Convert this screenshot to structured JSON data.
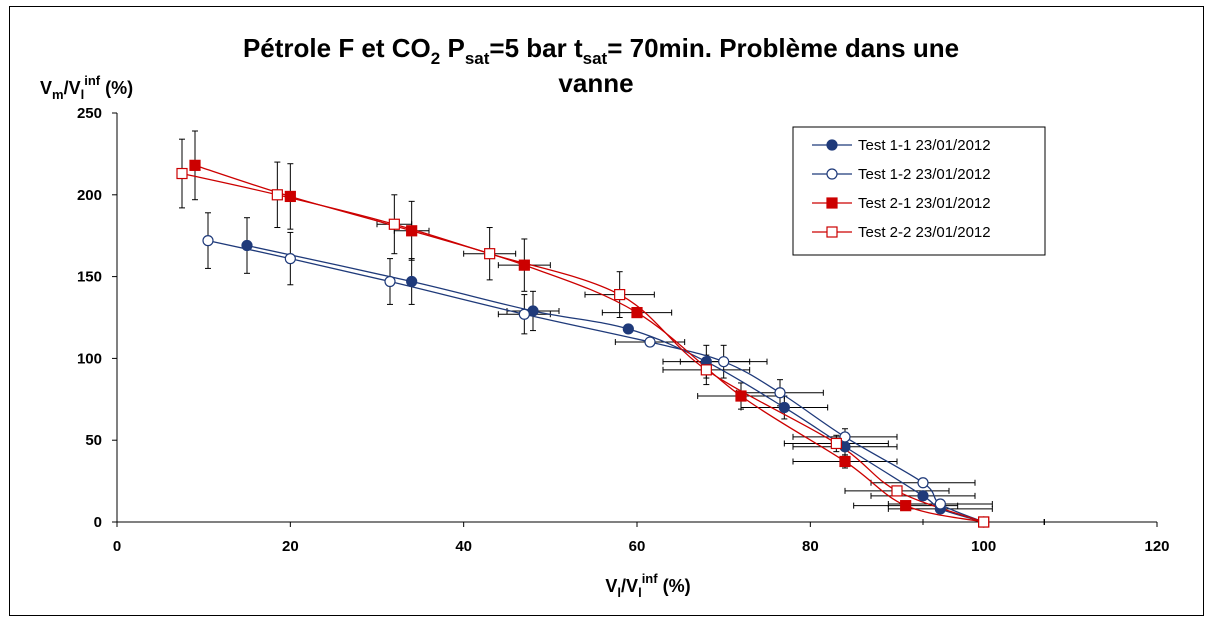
{
  "chart_data": {
    "type": "scatter",
    "title": {
      "line1": {
        "a": "Pétrole F et CO",
        "a_sub": "2",
        "b": " P",
        "b_sub": "sat",
        "c": "=5 bar t",
        "c_sub": "sat",
        "d": "= 70min. Problème dans une"
      },
      "line2": "vanne"
    },
    "xlabel": {
      "a": "V",
      "a_sub": "l",
      "b": "/V",
      "b_sub": "l",
      "b_sup": "inf",
      "c": " (%)"
    },
    "ylabel": {
      "a": "V",
      "a_sub": "m",
      "b": "/V",
      "b_sub": "l",
      "b_sup": "inf",
      "c": " (%)"
    },
    "xlim": [
      0,
      120
    ],
    "ylim": [
      0,
      250
    ],
    "x_ticks": [
      "0",
      "20",
      "40",
      "60",
      "80",
      "100",
      "120"
    ],
    "y_ticks": [
      "0",
      "50",
      "100",
      "150",
      "200",
      "250"
    ],
    "grid": false,
    "legend_position": "top-right",
    "series": [
      {
        "name": "Test 1-1 23/01/2012",
        "color": "#1f3a7a",
        "marker": "circle",
        "filled": true,
        "points": [
          {
            "x": 15,
            "y": 169,
            "xerr": 0,
            "yerr": 17
          },
          {
            "x": 34,
            "y": 147,
            "xerr": 0,
            "yerr": 14
          },
          {
            "x": 48,
            "y": 129,
            "xerr": 3,
            "yerr": 12
          },
          {
            "x": 59,
            "y": 118,
            "xerr": 0,
            "yerr": 0
          },
          {
            "x": 68,
            "y": 98,
            "xerr": 5,
            "yerr": 10
          },
          {
            "x": 77,
            "y": 70,
            "xerr": 5,
            "yerr": 7
          },
          {
            "x": 84,
            "y": 46,
            "xerr": 6,
            "yerr": 5
          },
          {
            "x": 93,
            "y": 16,
            "xerr": 6,
            "yerr": 2
          },
          {
            "x": 95,
            "y": 8,
            "xerr": 6,
            "yerr": 1
          },
          {
            "x": 100,
            "y": 0,
            "xerr": 7,
            "yerr": 0
          }
        ]
      },
      {
        "name": "Test 1-2 23/01/2012",
        "color": "#1f3a7a",
        "marker": "circle",
        "filled": false,
        "points": [
          {
            "x": 10.5,
            "y": 172,
            "xerr": 0,
            "yerr": 17
          },
          {
            "x": 20,
            "y": 161,
            "xerr": 0,
            "yerr": 16
          },
          {
            "x": 31.5,
            "y": 147,
            "xerr": 0,
            "yerr": 14
          },
          {
            "x": 47,
            "y": 127,
            "xerr": 3,
            "yerr": 12
          },
          {
            "x": 61.5,
            "y": 110,
            "xerr": 4,
            "yerr": 0
          },
          {
            "x": 70,
            "y": 98,
            "xerr": 5,
            "yerr": 10
          },
          {
            "x": 76.5,
            "y": 79,
            "xerr": 5,
            "yerr": 8
          },
          {
            "x": 84,
            "y": 52,
            "xerr": 6,
            "yerr": 5
          },
          {
            "x": 93,
            "y": 24,
            "xerr": 6,
            "yerr": 2
          },
          {
            "x": 95,
            "y": 11,
            "xerr": 6,
            "yerr": 1
          },
          {
            "x": 100,
            "y": 0,
            "xerr": 7,
            "yerr": 0
          }
        ]
      },
      {
        "name": "Test 2-1 23/01/2012",
        "color": "#cc0000",
        "marker": "square",
        "filled": true,
        "points": [
          {
            "x": 9,
            "y": 218,
            "xerr": 0,
            "yerr": 21
          },
          {
            "x": 20,
            "y": 199,
            "xerr": 0,
            "yerr": 20
          },
          {
            "x": 34,
            "y": 178,
            "xerr": 2,
            "yerr": 18
          },
          {
            "x": 47,
            "y": 157,
            "xerr": 3,
            "yerr": 16
          },
          {
            "x": 60,
            "y": 128,
            "xerr": 4,
            "yerr": 0
          },
          {
            "x": 72,
            "y": 77,
            "xerr": 5,
            "yerr": 8
          },
          {
            "x": 84,
            "y": 37,
            "xerr": 6,
            "yerr": 4
          },
          {
            "x": 91,
            "y": 10,
            "xerr": 6,
            "yerr": 1
          },
          {
            "x": 100,
            "y": 0,
            "xerr": 7,
            "yerr": 0
          }
        ]
      },
      {
        "name": "Test 2-2 23/01/2012",
        "color": "#cc0000",
        "marker": "square",
        "filled": false,
        "points": [
          {
            "x": 7.5,
            "y": 213,
            "xerr": 0,
            "yerr": 21
          },
          {
            "x": 18.5,
            "y": 200,
            "xerr": 0,
            "yerr": 20
          },
          {
            "x": 32,
            "y": 182,
            "xerr": 2,
            "yerr": 18
          },
          {
            "x": 43,
            "y": 164,
            "xerr": 3,
            "yerr": 16
          },
          {
            "x": 58,
            "y": 139,
            "xerr": 4,
            "yerr": 14
          },
          {
            "x": 68,
            "y": 93,
            "xerr": 5,
            "yerr": 9
          },
          {
            "x": 83,
            "y": 48,
            "xerr": 6,
            "yerr": 5
          },
          {
            "x": 90,
            "y": 19,
            "xerr": 6,
            "yerr": 2
          },
          {
            "x": 100,
            "y": 0,
            "xerr": 7,
            "yerr": 0
          }
        ]
      }
    ]
  }
}
